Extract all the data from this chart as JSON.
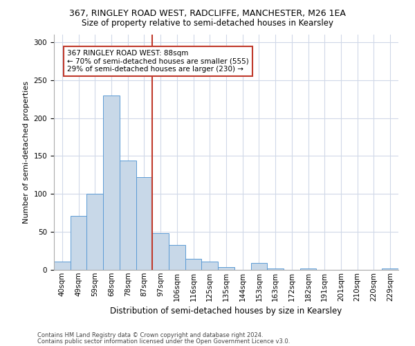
{
  "title_line1": "367, RINGLEY ROAD WEST, RADCLIFFE, MANCHESTER, M26 1EA",
  "title_line2": "Size of property relative to semi-detached houses in Kearsley",
  "xlabel": "Distribution of semi-detached houses by size in Kearsley",
  "ylabel": "Number of semi-detached properties",
  "categories": [
    "40sqm",
    "49sqm",
    "59sqm",
    "68sqm",
    "78sqm",
    "87sqm",
    "97sqm",
    "106sqm",
    "116sqm",
    "125sqm",
    "135sqm",
    "144sqm",
    "153sqm",
    "163sqm",
    "172sqm",
    "182sqm",
    "191sqm",
    "201sqm",
    "210sqm",
    "220sqm",
    "229sqm"
  ],
  "values": [
    11,
    71,
    100,
    230,
    144,
    122,
    48,
    33,
    15,
    11,
    4,
    0,
    9,
    2,
    0,
    2,
    0,
    0,
    0,
    0,
    2
  ],
  "bar_color": "#c8d8e8",
  "bar_edge_color": "#5b9bd5",
  "vline_x": 5.5,
  "vline_color": "#c0392b",
  "annotation_text": "367 RINGLEY ROAD WEST: 88sqm\n← 70% of semi-detached houses are smaller (555)\n29% of semi-detached houses are larger (230) →",
  "annotation_box_color": "#c0392b",
  "ylim": [
    0,
    310
  ],
  "yticks": [
    0,
    50,
    100,
    150,
    200,
    250,
    300
  ],
  "footer_line1": "Contains HM Land Registry data © Crown copyright and database right 2024.",
  "footer_line2": "Contains public sector information licensed under the Open Government Licence v3.0.",
  "background_color": "#ffffff",
  "grid_color": "#d0d8e8",
  "title1_fontsize": 9,
  "title2_fontsize": 8.5,
  "ylabel_fontsize": 8,
  "xlabel_fontsize": 8.5,
  "tick_fontsize": 7.5,
  "annotation_fontsize": 7.5,
  "footer_fontsize": 6
}
